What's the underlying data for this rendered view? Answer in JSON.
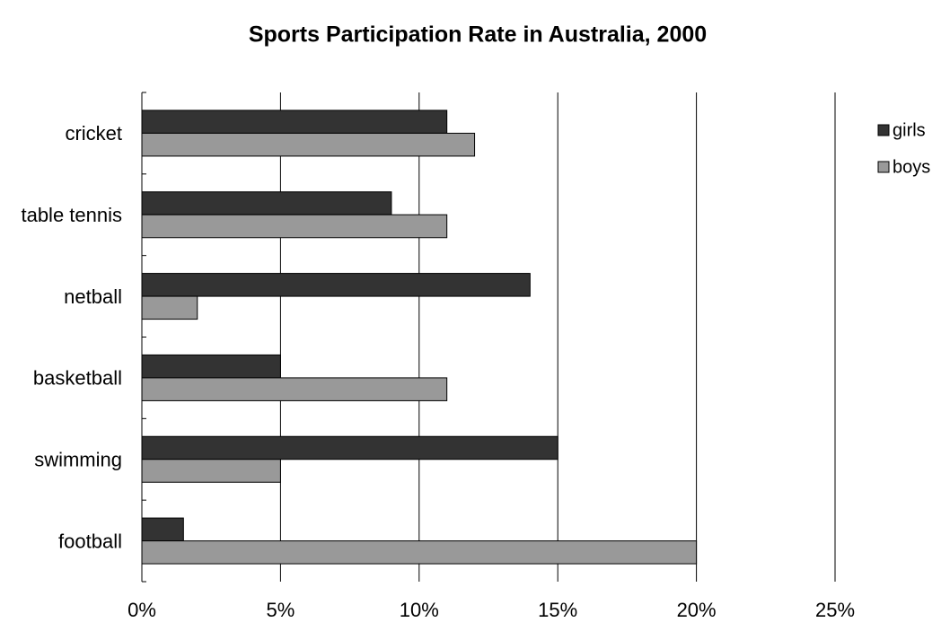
{
  "chart_data": {
    "type": "hbar",
    "title": "Sports Participation Rate in Australia, 2000",
    "categories": [
      "cricket",
      "table tennis",
      "netball",
      "basketball",
      "swimming",
      "football"
    ],
    "series": [
      {
        "name": "girls",
        "color": "#333333",
        "values": [
          11,
          9,
          14,
          5,
          15,
          1.5
        ]
      },
      {
        "name": "boys",
        "color": "#999999",
        "values": [
          12,
          11,
          2,
          11,
          5,
          20
        ]
      }
    ],
    "xlim": [
      0,
      25
    ],
    "xticks": [
      {
        "value": 0,
        "label": "0%"
      },
      {
        "value": 5,
        "label": "5%"
      },
      {
        "value": 10,
        "label": "10%"
      },
      {
        "value": 15,
        "label": "15%"
      },
      {
        "value": 20,
        "label": "20%"
      },
      {
        "value": 25,
        "label": "25%"
      }
    ],
    "grid": true,
    "legend": "right"
  }
}
